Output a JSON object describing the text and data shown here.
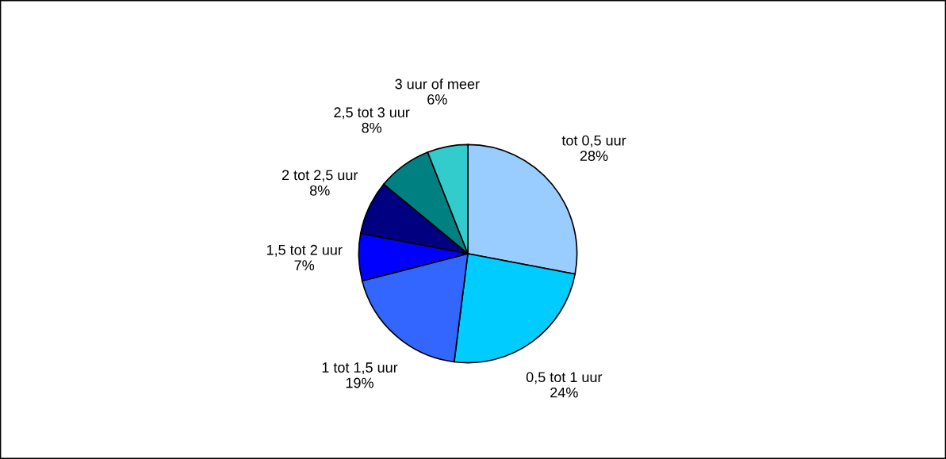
{
  "chart_data": {
    "type": "pie",
    "categories": [
      "tot 0,5 uur",
      "0,5 tot 1 uur",
      "1 tot 1,5 uur",
      "1,5 tot 2 uur",
      "2 tot 2,5 uur",
      "2,5 tot 3 uur",
      "3 uur of meer"
    ],
    "values": [
      28,
      24,
      19,
      7,
      8,
      8,
      6
    ],
    "value_labels": [
      "28%",
      "24%",
      "19%",
      "7%",
      "8%",
      "8%",
      "6%"
    ],
    "colors": [
      "#99ccff",
      "#00ccff",
      "#3366ff",
      "#0000ff",
      "#000080",
      "#008080",
      "#33cccc"
    ],
    "legend": false
  }
}
